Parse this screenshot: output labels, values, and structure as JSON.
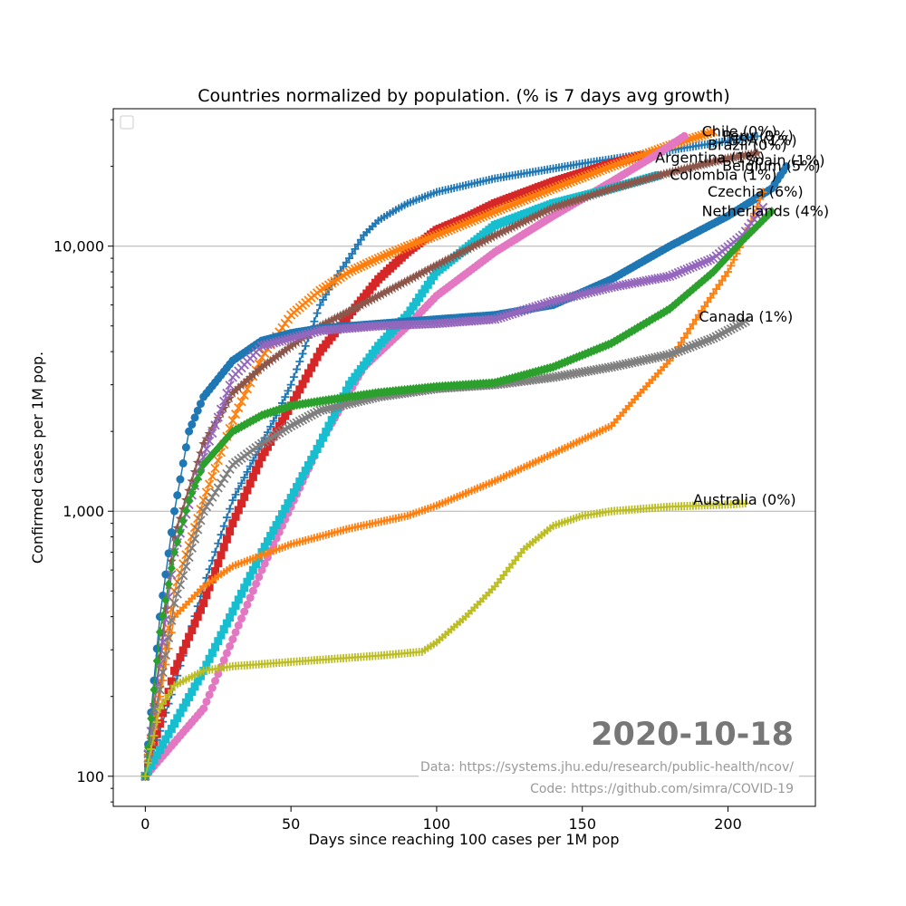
{
  "chart_data": {
    "type": "line",
    "title": "Countries normalized by population. (% is 7 days avg growth)",
    "xlabel": "Days since reaching 100 cases per 1M pop",
    "ylabel": "Confirmed cases per 1M pop.",
    "xlim": [
      -11,
      230
    ],
    "ylim": [
      77,
      33000
    ],
    "yscale": "log",
    "xticks": [
      0,
      50,
      100,
      150,
      200
    ],
    "xtick_labels": [
      "0",
      "50",
      "100",
      "150",
      "200"
    ],
    "yticks": [
      100,
      1000,
      10000
    ],
    "ytick_labels": [
      "100",
      "1,000",
      "10,000"
    ],
    "grid": "y-major",
    "legend": "top-left (empty)",
    "date_stamp": "2020-10-18",
    "credits": [
      "Data: https://systems.jhu.edu/research/public-health/ncov/",
      "Code: https://github.com/simra/COVID-19"
    ],
    "series": [
      {
        "name": "USA (1%)",
        "color": "#1f77b4",
        "marker": "plus",
        "x": [
          0,
          10,
          20,
          30,
          40,
          45,
          50,
          55,
          60,
          65,
          70,
          75,
          80,
          85,
          90,
          100,
          120,
          150,
          180,
          210
        ],
        "y": [
          100,
          220,
          520,
          1100,
          1800,
          2300,
          3000,
          4200,
          6000,
          7500,
          9000,
          11000,
          12500,
          13500,
          14500,
          16000,
          18000,
          20500,
          23000,
          26000
        ]
      },
      {
        "name": "Brazil (0%)",
        "color": "#d62728",
        "marker": "square",
        "x": [
          0,
          10,
          20,
          30,
          40,
          50,
          60,
          70,
          80,
          90,
          100,
          110,
          120,
          140,
          160,
          170
        ],
        "y": [
          100,
          250,
          450,
          900,
          1600,
          2500,
          4000,
          5500,
          7500,
          9500,
          11500,
          12800,
          14500,
          17500,
          20500,
          22000
        ]
      },
      {
        "name": "Chile (0%)",
        "color": "#ff7f0e",
        "marker": "x",
        "x": [
          0,
          10,
          20,
          30,
          40,
          50,
          60,
          70,
          80,
          90,
          100,
          120,
          140,
          160,
          180,
          195
        ],
        "y": [
          100,
          500,
          1100,
          2200,
          3800,
          5500,
          6800,
          8000,
          9000,
          10000,
          11000,
          13500,
          16500,
          20000,
          24000,
          27000
        ]
      },
      {
        "name": "Peru (0%)",
        "color": "#e377c2",
        "marker": "circle",
        "x": [
          0,
          20,
          40,
          60,
          75,
          90,
          100,
          120,
          140,
          160,
          175,
          185
        ],
        "y": [
          100,
          180,
          600,
          1800,
          3500,
          5000,
          6500,
          9500,
          13000,
          17500,
          22000,
          26000
        ]
      },
      {
        "name": "Argentina (1%)",
        "color": "#17becf",
        "marker": "square",
        "x": [
          0,
          20,
          40,
          60,
          70,
          80,
          90,
          100,
          120,
          140,
          160,
          176
        ],
        "y": [
          100,
          250,
          700,
          1800,
          3000,
          4200,
          5500,
          8000,
          12000,
          14500,
          16500,
          18500
        ]
      },
      {
        "name": "Spain (1%)",
        "color": "#8c564b",
        "marker": "star",
        "x": [
          0,
          10,
          20,
          30,
          40,
          50,
          60,
          80,
          100,
          120,
          140,
          160,
          180,
          200,
          210
        ],
        "y": [
          100,
          800,
          1800,
          2800,
          3500,
          4200,
          5000,
          6500,
          8500,
          11000,
          14000,
          16500,
          19000,
          21500,
          22500
        ]
      },
      {
        "name": "Belgium (5%)",
        "color": "#1f77b4",
        "marker": "circle",
        "x": [
          0,
          5,
          10,
          15,
          20,
          30,
          40,
          50,
          60,
          80,
          100,
          120,
          140,
          160,
          180,
          200,
          215,
          220
        ],
        "y": [
          100,
          400,
          1000,
          2000,
          2700,
          3700,
          4400,
          4700,
          4900,
          5100,
          5300,
          5500,
          6000,
          7500,
          10000,
          13000,
          16500,
          20000
        ]
      },
      {
        "name": "Colombia (1%)",
        "color": "#d62728",
        "marker": "none",
        "label_only": true,
        "x": [],
        "y": []
      },
      {
        "name": "Czechia (6%)",
        "color": "#ff7f0e",
        "marker": "plus",
        "x": [
          0,
          10,
          20,
          30,
          50,
          70,
          90,
          100,
          120,
          140,
          160,
          170,
          180,
          190,
          200,
          206,
          212
        ],
        "y": [
          100,
          400,
          520,
          620,
          750,
          860,
          960,
          1050,
          1300,
          1650,
          2100,
          2800,
          3700,
          5500,
          8000,
          11000,
          16000
        ]
      },
      {
        "name": "Netherlands (4%)",
        "color": "#9467bd",
        "marker": "x",
        "x": [
          0,
          10,
          20,
          30,
          40,
          60,
          80,
          100,
          120,
          140,
          160,
          180,
          195,
          205,
          212
        ],
        "y": [
          100,
          700,
          1600,
          3200,
          4200,
          4800,
          5000,
          5100,
          5300,
          6200,
          7000,
          7700,
          9000,
          11000,
          14000
        ]
      },
      {
        "name": "Canada (1%)",
        "color": "#7f7f7f",
        "marker": "x",
        "x": [
          0,
          10,
          20,
          30,
          40,
          50,
          60,
          80,
          100,
          120,
          140,
          160,
          180,
          195,
          206
        ],
        "y": [
          100,
          450,
          1000,
          1500,
          1800,
          2100,
          2400,
          2700,
          2900,
          3000,
          3200,
          3500,
          3900,
          4500,
          5200
        ]
      },
      {
        "name": "",
        "color": "#2ca02c",
        "marker": "diamond",
        "x": [
          0,
          5,
          10,
          15,
          20,
          30,
          40,
          50,
          60,
          80,
          100,
          120,
          140,
          160,
          180,
          195,
          205,
          215
        ],
        "y": [
          100,
          350,
          700,
          1100,
          1500,
          2000,
          2300,
          2500,
          2600,
          2800,
          2950,
          3050,
          3500,
          4300,
          5800,
          8000,
          10500,
          13500
        ]
      },
      {
        "name": "Australia (0%)",
        "color": "#bcbd22",
        "marker": "plus",
        "x": [
          0,
          5,
          10,
          20,
          30,
          50,
          80,
          95,
          100,
          110,
          120,
          130,
          140,
          150,
          160,
          180,
          200,
          206
        ],
        "y": [
          100,
          180,
          220,
          250,
          260,
          270,
          285,
          295,
          320,
          400,
          520,
          720,
          880,
          960,
          1000,
          1040,
          1060,
          1070
        ]
      }
    ],
    "annotations": [
      {
        "text": "Chile (0%)",
        "x": 191,
        "y": 27000
      },
      {
        "text": "Peru (0%)",
        "x": 198,
        "y": 26000
      },
      {
        "text": "USA (1%)",
        "x": 200,
        "y": 25000
      },
      {
        "text": "Brazil (0%)",
        "x": 193,
        "y": 24000
      },
      {
        "text": "Argentina (1%)",
        "x": 175,
        "y": 21500
      },
      {
        "text": "Spain (1%)",
        "x": 206,
        "y": 21000
      },
      {
        "text": "Belgium (5%)",
        "x": 198,
        "y": 20000
      },
      {
        "text": "Colombia (1%)",
        "x": 180,
        "y": 18500
      },
      {
        "text": "Czechia (6%)",
        "x": 193,
        "y": 16000
      },
      {
        "text": "Netherlands (4%)",
        "x": 191,
        "y": 13500
      },
      {
        "text": "Canada (1%)",
        "x": 190,
        "y": 5400
      },
      {
        "text": "Australia (0%)",
        "x": 188,
        "y": 1100
      }
    ]
  }
}
